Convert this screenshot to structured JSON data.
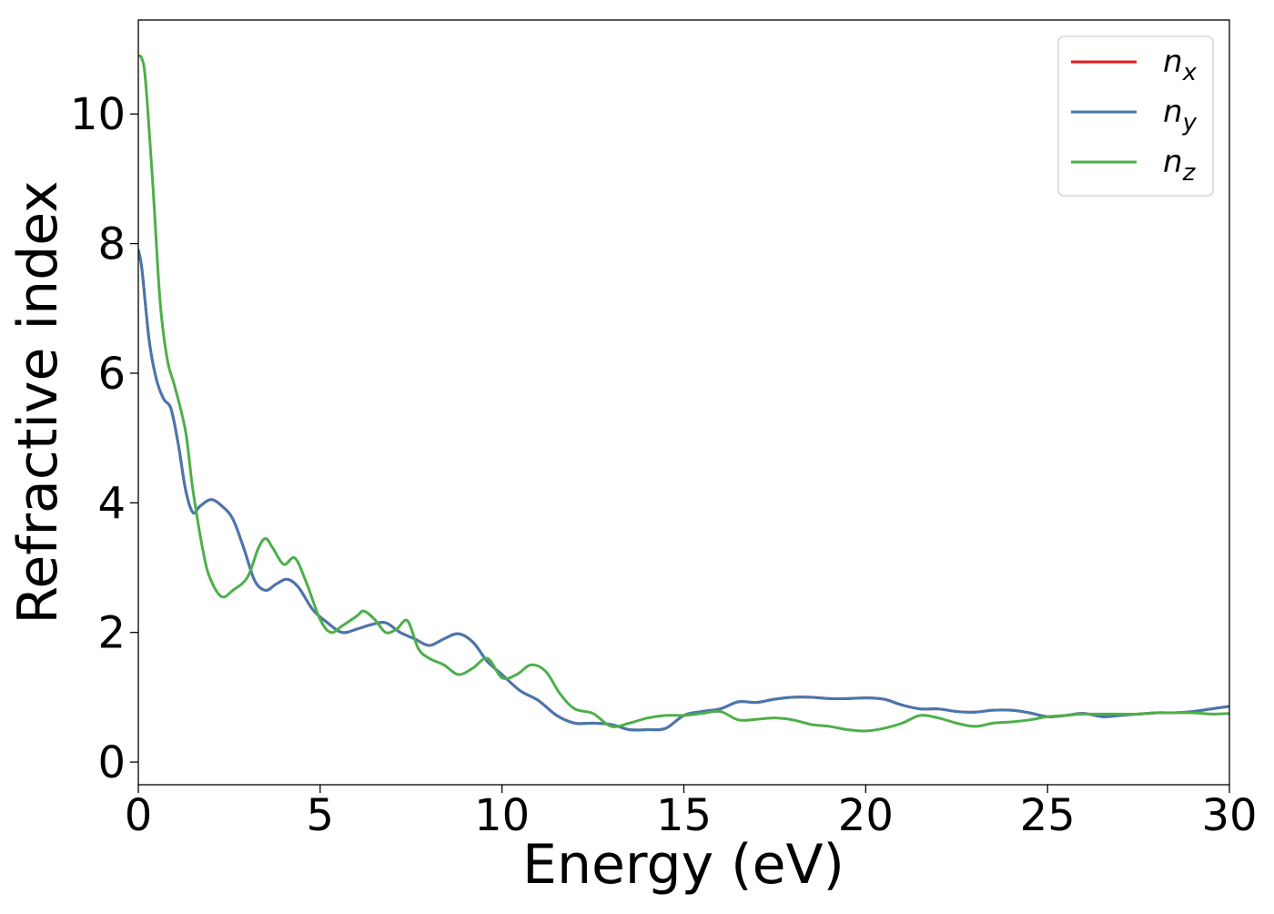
{
  "chart_data": {
    "type": "line",
    "title": "",
    "xlabel": "Energy (eV)",
    "ylabel": "Refractive index",
    "xlim": [
      0,
      30
    ],
    "ylim": [
      -0.35,
      11.45
    ],
    "xticks": [
      0,
      5,
      10,
      15,
      20,
      25,
      30
    ],
    "yticks": [
      0,
      2,
      4,
      6,
      8,
      10
    ],
    "xtick_labels": [
      "0",
      "5",
      "10",
      "15",
      "20",
      "25",
      "30"
    ],
    "ytick_labels": [
      "0",
      "2",
      "4",
      "6",
      "8",
      "10"
    ],
    "grid": false,
    "legend": {
      "position": "top-right",
      "entries": [
        {
          "main": "n",
          "sub": "x"
        },
        {
          "main": "n",
          "sub": "y"
        },
        {
          "main": "n",
          "sub": "z"
        }
      ]
    },
    "series": [
      {
        "name": "n_x",
        "color": "#e41a1c",
        "x": [
          0,
          0.1,
          0.3,
          0.5,
          0.7,
          0.9,
          1.1,
          1.3,
          1.5,
          1.7,
          2.0,
          2.3,
          2.6,
          2.9,
          3.2,
          3.5,
          3.8,
          4.1,
          4.4,
          4.8,
          5.2,
          5.6,
          6.0,
          6.4,
          6.8,
          7.2,
          7.6,
          8.0,
          8.4,
          8.8,
          9.2,
          9.6,
          10.0,
          10.5,
          11.0,
          11.5,
          12.0,
          12.5,
          13.0,
          13.5,
          14.0,
          14.5,
          15.0,
          15.5,
          16.0,
          16.5,
          17.0,
          17.5,
          18.0,
          18.5,
          19.0,
          19.5,
          20.0,
          20.5,
          21.0,
          21.5,
          22.0,
          22.5,
          23.0,
          23.5,
          24.0,
          24.5,
          25.0,
          25.5,
          26.0,
          26.5,
          27.0,
          27.5,
          28.0,
          28.5,
          29.0,
          29.5,
          30.0
        ],
        "y": [
          7.9,
          7.6,
          6.5,
          5.9,
          5.6,
          5.45,
          4.9,
          4.2,
          3.85,
          3.95,
          4.05,
          3.95,
          3.75,
          3.3,
          2.8,
          2.65,
          2.75,
          2.82,
          2.7,
          2.35,
          2.15,
          2.0,
          2.05,
          2.12,
          2.15,
          2.0,
          1.9,
          1.8,
          1.9,
          1.98,
          1.85,
          1.55,
          1.35,
          1.1,
          0.95,
          0.72,
          0.6,
          0.6,
          0.58,
          0.5,
          0.5,
          0.52,
          0.72,
          0.78,
          0.82,
          0.93,
          0.92,
          0.97,
          1.0,
          1.0,
          0.98,
          0.98,
          0.99,
          0.97,
          0.88,
          0.82,
          0.82,
          0.78,
          0.77,
          0.8,
          0.8,
          0.76,
          0.7,
          0.72,
          0.75,
          0.7,
          0.72,
          0.74,
          0.76,
          0.76,
          0.78,
          0.82,
          0.86
        ]
      },
      {
        "name": "n_y",
        "color": "#4578b0",
        "x": [
          0,
          0.1,
          0.3,
          0.5,
          0.7,
          0.9,
          1.1,
          1.3,
          1.5,
          1.7,
          2.0,
          2.3,
          2.6,
          2.9,
          3.2,
          3.5,
          3.8,
          4.1,
          4.4,
          4.8,
          5.2,
          5.6,
          6.0,
          6.4,
          6.8,
          7.2,
          7.6,
          8.0,
          8.4,
          8.8,
          9.2,
          9.6,
          10.0,
          10.5,
          11.0,
          11.5,
          12.0,
          12.5,
          13.0,
          13.5,
          14.0,
          14.5,
          15.0,
          15.5,
          16.0,
          16.5,
          17.0,
          17.5,
          18.0,
          18.5,
          19.0,
          19.5,
          20.0,
          20.5,
          21.0,
          21.5,
          22.0,
          22.5,
          23.0,
          23.5,
          24.0,
          24.5,
          25.0,
          25.5,
          26.0,
          26.5,
          27.0,
          27.5,
          28.0,
          28.5,
          29.0,
          29.5,
          30.0
        ],
        "y": [
          7.9,
          7.6,
          6.5,
          5.9,
          5.6,
          5.45,
          4.9,
          4.2,
          3.85,
          3.95,
          4.05,
          3.95,
          3.75,
          3.3,
          2.8,
          2.65,
          2.75,
          2.82,
          2.7,
          2.35,
          2.15,
          2.0,
          2.05,
          2.12,
          2.15,
          2.0,
          1.9,
          1.8,
          1.9,
          1.98,
          1.85,
          1.55,
          1.35,
          1.1,
          0.95,
          0.72,
          0.6,
          0.6,
          0.58,
          0.5,
          0.5,
          0.52,
          0.72,
          0.78,
          0.82,
          0.93,
          0.92,
          0.97,
          1.0,
          1.0,
          0.98,
          0.98,
          0.99,
          0.97,
          0.88,
          0.82,
          0.82,
          0.78,
          0.77,
          0.8,
          0.8,
          0.76,
          0.7,
          0.72,
          0.75,
          0.7,
          0.72,
          0.74,
          0.76,
          0.76,
          0.78,
          0.82,
          0.86
        ]
      },
      {
        "name": "n_z",
        "color": "#4daf4a",
        "x": [
          0,
          0.1,
          0.2,
          0.4,
          0.6,
          0.8,
          1.0,
          1.3,
          1.5,
          1.8,
          2.0,
          2.3,
          2.6,
          3.0,
          3.3,
          3.5,
          3.7,
          4.0,
          4.3,
          4.6,
          5.0,
          5.3,
          5.6,
          6.0,
          6.2,
          6.5,
          6.8,
          7.1,
          7.4,
          7.7,
          8.0,
          8.4,
          8.8,
          9.2,
          9.6,
          10.0,
          10.4,
          10.8,
          11.2,
          11.6,
          12.0,
          12.5,
          13.0,
          13.5,
          14.0,
          14.5,
          15.0,
          15.5,
          16.0,
          16.5,
          17.0,
          17.5,
          18.0,
          18.5,
          19.0,
          19.5,
          20.0,
          20.5,
          21.0,
          21.5,
          22.0,
          22.5,
          23.0,
          23.5,
          24.0,
          24.5,
          25.0,
          25.5,
          26.0,
          26.5,
          27.0,
          27.5,
          28.0,
          28.5,
          29.0,
          29.5,
          30.0
        ],
        "y": [
          10.9,
          10.85,
          10.5,
          8.9,
          7.1,
          6.2,
          5.8,
          5.1,
          4.2,
          3.2,
          2.8,
          2.55,
          2.65,
          2.85,
          3.3,
          3.45,
          3.3,
          3.05,
          3.15,
          2.8,
          2.2,
          2.0,
          2.1,
          2.25,
          2.33,
          2.2,
          2.0,
          2.05,
          2.18,
          1.75,
          1.6,
          1.5,
          1.35,
          1.45,
          1.6,
          1.3,
          1.35,
          1.5,
          1.4,
          1.05,
          0.82,
          0.75,
          0.55,
          0.6,
          0.68,
          0.72,
          0.72,
          0.75,
          0.78,
          0.65,
          0.66,
          0.68,
          0.65,
          0.58,
          0.55,
          0.5,
          0.48,
          0.52,
          0.6,
          0.72,
          0.68,
          0.6,
          0.55,
          0.6,
          0.62,
          0.65,
          0.7,
          0.72,
          0.74,
          0.74,
          0.74,
          0.74,
          0.76,
          0.76,
          0.76,
          0.74,
          0.75
        ]
      }
    ]
  }
}
